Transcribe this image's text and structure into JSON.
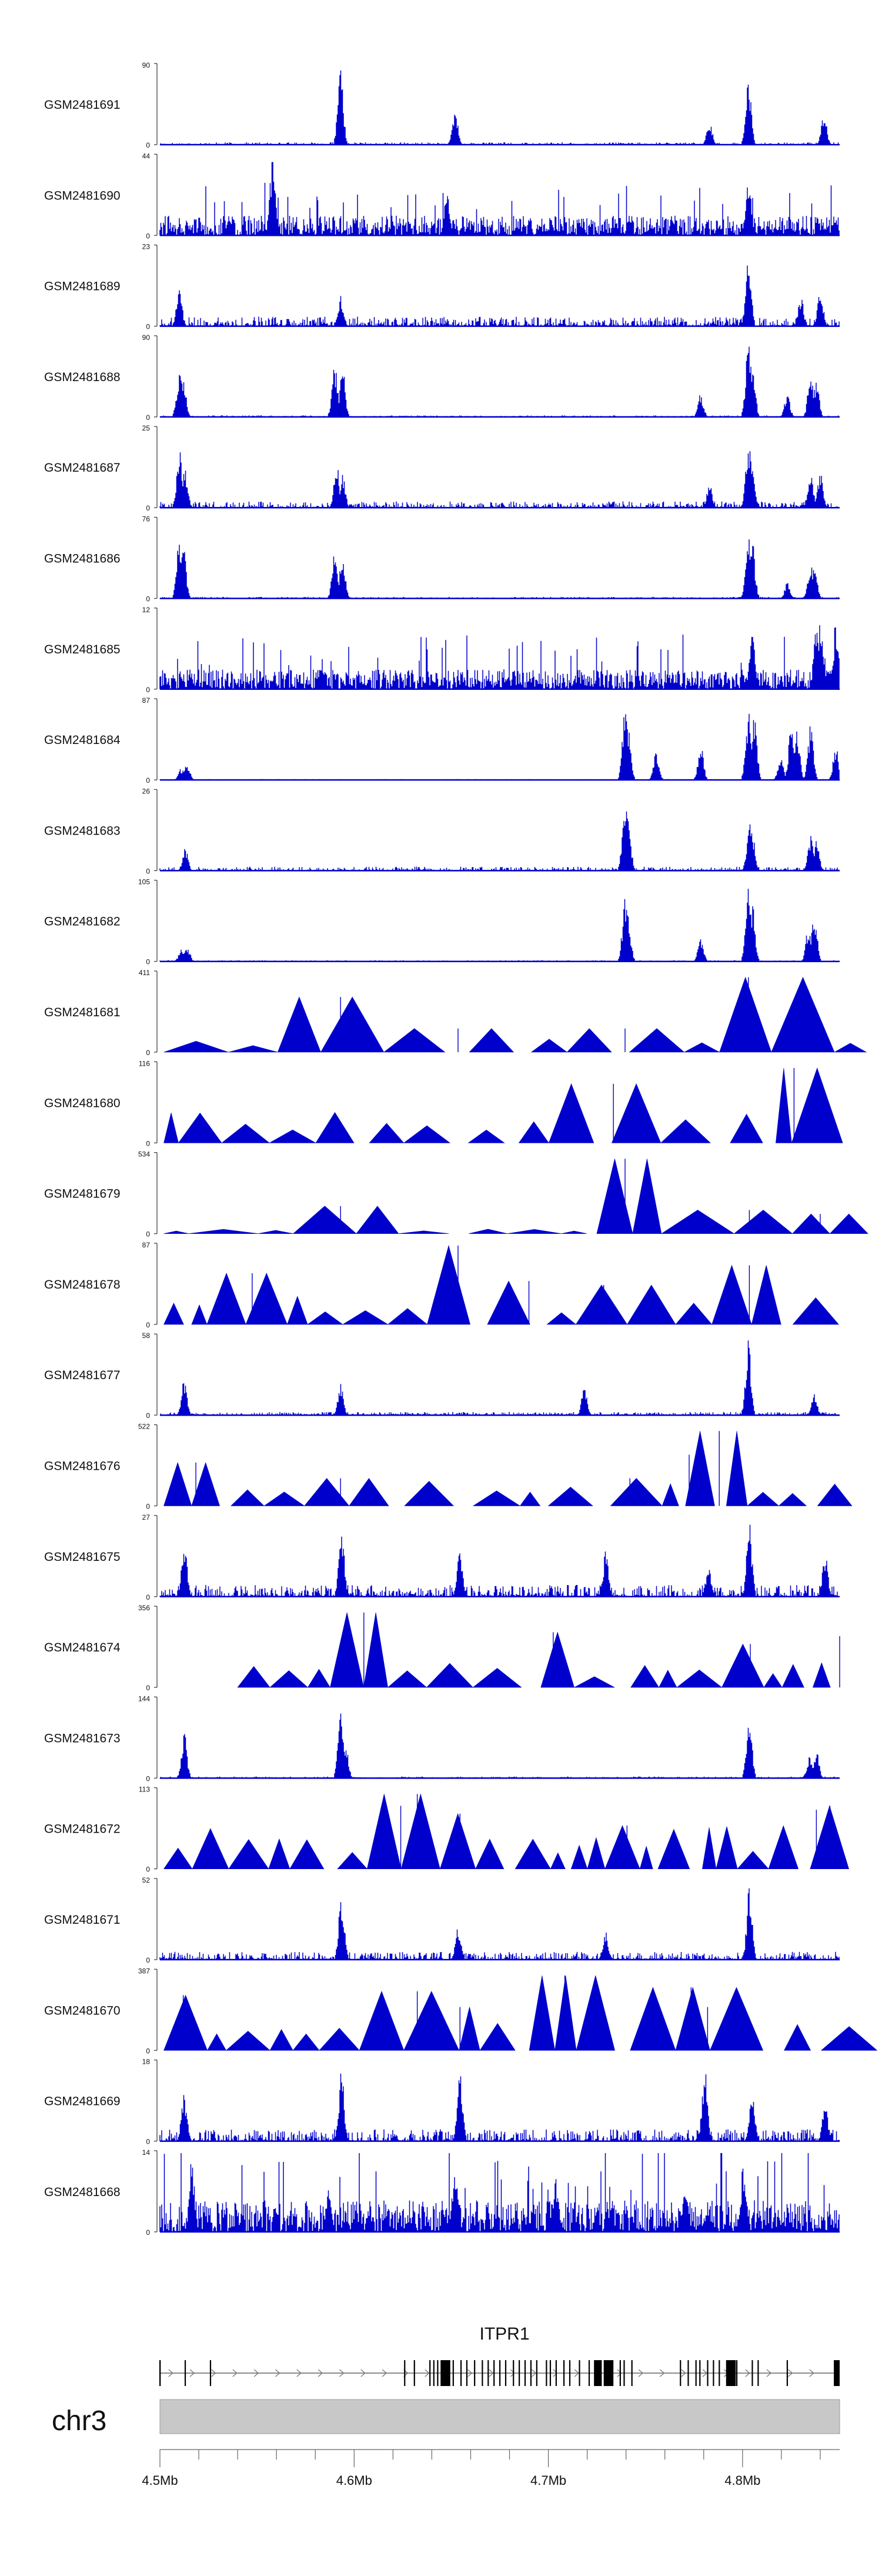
{
  "chart_data": {
    "type": "area",
    "title": "",
    "color": "#0000CC",
    "xlabel": "",
    "x_range_mb": [
      4.5,
      4.85
    ],
    "x_ticks": [
      {
        "value": 4.5,
        "label": "4.5Mb"
      },
      {
        "value": 4.6,
        "label": "4.6Mb"
      },
      {
        "value": 4.7,
        "label": "4.7Mb"
      },
      {
        "value": 4.8,
        "label": "4.8Mb"
      }
    ],
    "tracks": [
      {
        "name": "GSM2481691",
        "ymax": 90,
        "ymin": 0,
        "style": "bars",
        "noise": 0.03,
        "peaks": [
          [
            4.593,
            0.95
          ],
          [
            4.652,
            0.45
          ],
          [
            4.783,
            0.3
          ],
          [
            4.803,
            0.85
          ],
          [
            4.842,
            0.4
          ]
        ]
      },
      {
        "name": "GSM2481690",
        "ymax": 44,
        "ymin": 0,
        "style": "dense",
        "noise": 0.25,
        "peaks": [
          [
            4.558,
            1.0
          ],
          [
            4.648,
            0.6
          ],
          [
            4.803,
            0.75
          ]
        ]
      },
      {
        "name": "GSM2481689",
        "ymax": 23,
        "ymin": 0,
        "style": "bars",
        "noise": 0.12,
        "peaks": [
          [
            4.51,
            0.5
          ],
          [
            4.593,
            0.4
          ],
          [
            4.803,
            0.95
          ],
          [
            4.83,
            0.4
          ],
          [
            4.84,
            0.5
          ]
        ]
      },
      {
        "name": "GSM2481688",
        "ymax": 90,
        "ymin": 0,
        "style": "bars",
        "noise": 0.02,
        "peaks": [
          [
            4.51,
            0.6
          ],
          [
            4.512,
            0.55
          ],
          [
            4.59,
            0.7
          ],
          [
            4.594,
            0.65
          ],
          [
            4.7785,
            0.3
          ],
          [
            4.803,
            0.95
          ],
          [
            4.805,
            0.8
          ],
          [
            4.823,
            0.3
          ],
          [
            4.835,
            0.55
          ],
          [
            4.838,
            0.45
          ]
        ]
      },
      {
        "name": "GSM2481687",
        "ymax": 25,
        "ymin": 0,
        "style": "bars",
        "noise": 0.08,
        "peaks": [
          [
            4.51,
            0.75
          ],
          [
            4.513,
            0.5
          ],
          [
            4.591,
            0.55
          ],
          [
            4.594,
            0.45
          ],
          [
            4.783,
            0.3
          ],
          [
            4.803,
            0.9
          ],
          [
            4.805,
            0.6
          ],
          [
            4.835,
            0.5
          ],
          [
            4.84,
            0.45
          ]
        ]
      },
      {
        "name": "GSM2481686",
        "ymax": 76,
        "ymin": 0,
        "style": "bars",
        "noise": 0.02,
        "peaks": [
          [
            4.51,
            0.75
          ],
          [
            4.512,
            0.7
          ],
          [
            4.59,
            0.6
          ],
          [
            4.594,
            0.6
          ],
          [
            4.803,
            0.95
          ],
          [
            4.805,
            0.75
          ],
          [
            4.823,
            0.2
          ],
          [
            4.835,
            0.45
          ],
          [
            4.837,
            0.4
          ]
        ]
      },
      {
        "name": "GSM2481685",
        "ymax": 12,
        "ymin": 0,
        "style": "dense",
        "noise": 0.25,
        "peaks": [
          [
            4.805,
            0.7
          ],
          [
            4.838,
            0.9
          ],
          [
            4.84,
            0.95
          ],
          [
            4.848,
            0.85
          ]
        ]
      },
      {
        "name": "GSM2481684",
        "ymax": 87,
        "ymin": 0,
        "style": "bars",
        "noise": 0.01,
        "peaks": [
          [
            4.511,
            0.15
          ],
          [
            4.514,
            0.2
          ],
          [
            4.7395,
            0.9
          ],
          [
            4.741,
            0.75
          ],
          [
            4.7555,
            0.4
          ],
          [
            4.7785,
            0.45
          ],
          [
            4.803,
            0.9
          ],
          [
            4.806,
            0.85
          ],
          [
            4.8195,
            0.3
          ],
          [
            4.825,
            0.65
          ],
          [
            4.828,
            0.7
          ],
          [
            4.835,
            0.7
          ],
          [
            4.848,
            0.45
          ]
        ]
      },
      {
        "name": "GSM2481683",
        "ymax": 26,
        "ymin": 0,
        "style": "bars",
        "noise": 0.05,
        "peaks": [
          [
            4.513,
            0.3
          ],
          [
            4.7395,
            0.95
          ],
          [
            4.741,
            0.75
          ],
          [
            4.8035,
            0.65
          ],
          [
            4.805,
            0.5
          ],
          [
            4.835,
            0.45
          ],
          [
            4.838,
            0.4
          ]
        ]
      },
      {
        "name": "GSM2481682",
        "ymax": 105,
        "ymin": 0,
        "style": "bars",
        "noise": 0.015,
        "peaks": [
          [
            4.511,
            0.15
          ],
          [
            4.514,
            0.2
          ],
          [
            4.7395,
            0.8
          ],
          [
            4.741,
            0.6
          ],
          [
            4.7785,
            0.3
          ],
          [
            4.803,
            0.95
          ],
          [
            4.805,
            0.75
          ],
          [
            4.834,
            0.45
          ],
          [
            4.837,
            0.6
          ]
        ]
      },
      {
        "name": "GSM2481681",
        "ymax": 411,
        "ymin": 0,
        "style": "triangles",
        "noise": 0.18,
        "peaks": [
          [
            4.593,
            0.7
          ],
          [
            4.6535,
            0.3
          ],
          [
            4.7395,
            0.3
          ],
          [
            4.803,
            0.95
          ]
        ]
      },
      {
        "name": "GSM2481680",
        "ymax": 116,
        "ymin": 0,
        "style": "triangles",
        "noise": 0.4,
        "peaks": [
          [
            4.7335,
            0.75
          ],
          [
            4.8265,
            0.95
          ],
          [
            4.838,
            0.65
          ]
        ]
      },
      {
        "name": "GSM2481679",
        "ymax": 534,
        "ymin": 0,
        "style": "triangles",
        "noise": 0.07,
        "peaks": [
          [
            4.593,
            0.35
          ],
          [
            4.7395,
            0.95
          ],
          [
            4.8035,
            0.3
          ],
          [
            4.84,
            0.25
          ]
        ]
      },
      {
        "name": "GSM2481678",
        "ymax": 87,
        "ymin": 0,
        "style": "triangles",
        "noise": 0.4,
        "peaks": [
          [
            4.5475,
            0.65
          ],
          [
            4.6535,
            1.0
          ],
          [
            4.69,
            0.55
          ],
          [
            4.7285,
            0.5
          ],
          [
            4.8035,
            0.75
          ]
        ]
      },
      {
        "name": "GSM2481677",
        "ymax": 58,
        "ymin": 0,
        "style": "bars",
        "noise": 0.04,
        "peaks": [
          [
            4.5125,
            0.45
          ],
          [
            4.593,
            0.4
          ],
          [
            4.7185,
            0.35
          ],
          [
            4.803,
            0.95
          ],
          [
            4.837,
            0.3
          ]
        ]
      },
      {
        "name": "GSM2481676",
        "ymax": 522,
        "ymin": 0,
        "style": "triangles",
        "noise": 0.32,
        "peaks": [
          [
            4.5185,
            0.55
          ],
          [
            4.593,
            0.35
          ],
          [
            4.742,
            0.35
          ],
          [
            4.7725,
            0.65
          ],
          [
            4.788,
            0.95
          ]
        ]
      },
      {
        "name": "GSM2481675",
        "ymax": 27,
        "ymin": 0,
        "style": "bars",
        "noise": 0.15,
        "peaks": [
          [
            4.5125,
            0.8
          ],
          [
            4.5935,
            0.9
          ],
          [
            4.6545,
            0.6
          ],
          [
            4.7295,
            0.6
          ],
          [
            4.7825,
            0.4
          ],
          [
            4.8035,
            0.95
          ],
          [
            4.8425,
            0.55
          ]
        ]
      },
      {
        "name": "GSM2481674",
        "ymax": 356,
        "ymin": 0,
        "style": "triangles",
        "noise": 0.35,
        "peaks": [
          [
            4.605,
            0.95
          ],
          [
            4.7025,
            0.7
          ],
          [
            4.804,
            0.55
          ],
          [
            4.85,
            0.65
          ]
        ]
      },
      {
        "name": "GSM2481673",
        "ymax": 144,
        "ymin": 0,
        "style": "bars",
        "noise": 0.02,
        "peaks": [
          [
            4.5125,
            0.6
          ],
          [
            4.593,
            0.95
          ],
          [
            4.5955,
            0.45
          ],
          [
            4.8035,
            0.85
          ],
          [
            4.8345,
            0.3
          ],
          [
            4.838,
            0.35
          ]
        ]
      },
      {
        "name": "GSM2481672",
        "ymax": 113,
        "ymin": 0,
        "style": "triangles",
        "noise": 0.55,
        "peaks": [
          [
            4.6325,
            0.95
          ],
          [
            4.624,
            0.8
          ],
          [
            4.6545,
            0.7
          ],
          [
            4.7405,
            0.55
          ],
          [
            4.838,
            0.75
          ],
          [
            4.845,
            0.8
          ]
        ]
      },
      {
        "name": "GSM2481671",
        "ymax": 52,
        "ymin": 0,
        "style": "bars",
        "noise": 0.1,
        "peaks": [
          [
            4.5935,
            0.9
          ],
          [
            4.6535,
            0.45
          ],
          [
            4.7295,
            0.4
          ],
          [
            4.8035,
            0.95
          ]
        ]
      },
      {
        "name": "GSM2481670",
        "ymax": 387,
        "ymin": 0,
        "style": "triangles",
        "noise": 0.35,
        "peaks": [
          [
            4.512,
            0.7
          ],
          [
            4.6325,
            0.75
          ],
          [
            4.6545,
            0.55
          ],
          [
            4.7085,
            0.95
          ],
          [
            4.7735,
            0.8
          ],
          [
            4.782,
            0.55
          ]
        ]
      },
      {
        "name": "GSM2481669",
        "ymax": 18,
        "ymin": 0,
        "style": "bars",
        "noise": 0.15,
        "peaks": [
          [
            4.5125,
            0.65
          ],
          [
            4.5935,
            0.9
          ],
          [
            4.6545,
            0.85
          ],
          [
            4.7805,
            0.95
          ],
          [
            4.805,
            0.6
          ],
          [
            4.8425,
            0.55
          ]
        ]
      },
      {
        "name": "GSM2481668",
        "ymax": 14,
        "ymin": 0,
        "style": "dense",
        "noise": 0.4,
        "peaks": [
          [
            4.5165,
            0.95
          ],
          [
            4.587,
            0.7
          ],
          [
            4.652,
            0.95
          ],
          [
            4.704,
            0.7
          ],
          [
            4.7705,
            0.75
          ],
          [
            4.8005,
            0.9
          ]
        ]
      }
    ],
    "gene_track": {
      "gene_name": "ITPR1",
      "start_mb": 4.5,
      "end_mb": 4.85,
      "strand": "+",
      "exon_mb": [
        4.5,
        4.5,
        4.513,
        4.526,
        4.626,
        4.631,
        4.639,
        4.641,
        4.643,
        4.646,
        4.649,
        4.651,
        4.655,
        4.658,
        4.662,
        4.666,
        4.669,
        4.672,
        4.675,
        4.678,
        4.682,
        4.685,
        4.688,
        4.691,
        4.694,
        4.699,
        4.701,
        4.704,
        4.708,
        4.711,
        4.716,
        4.721,
        4.726,
        4.729,
        4.733,
        4.737,
        4.739,
        4.743,
        4.768,
        4.772,
        4.776,
        4.778,
        4.782,
        4.785,
        4.788,
        4.793,
        4.797,
        4.805,
        4.808,
        4.823,
        4.848
      ],
      "thick_exons_mb": [
        [
          4.6445,
          4.6495
        ],
        [
          4.7235,
          4.7275
        ],
        [
          4.7285,
          4.7335
        ],
        [
          4.7915,
          4.7965
        ],
        [
          4.847,
          4.85
        ]
      ]
    },
    "ideogram": {
      "chromosome": "chr3"
    }
  }
}
